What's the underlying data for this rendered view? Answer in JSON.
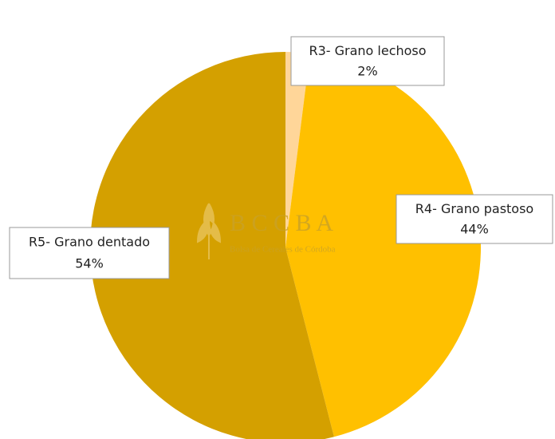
{
  "chart_data": {
    "type": "pie",
    "categories": [
      "R3- Grano lechoso",
      "R4- Grano pastoso",
      "R5- Grano dentado"
    ],
    "values": [
      2,
      44,
      54
    ],
    "value_labels": [
      "2%",
      "44%",
      "54%"
    ],
    "colors": [
      "#FFD699",
      "#FFC000",
      "#D4A000"
    ]
  },
  "watermark": {
    "title": "B C C B A",
    "subtitle": "Bolsa de Cereales de Córdoba"
  }
}
